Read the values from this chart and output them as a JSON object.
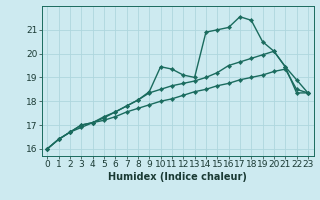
{
  "xlabel": "Humidex (Indice chaleur)",
  "background_color": "#cdeaf0",
  "line_color": "#1a6b5e",
  "xlim": [
    -0.5,
    23.5
  ],
  "ylim": [
    15.7,
    22.0
  ],
  "yticks": [
    16,
    17,
    18,
    19,
    20,
    21
  ],
  "xticks": [
    0,
    1,
    2,
    3,
    4,
    5,
    6,
    7,
    8,
    9,
    10,
    11,
    12,
    13,
    14,
    15,
    16,
    17,
    18,
    19,
    20,
    21,
    22,
    23
  ],
  "line1_x": [
    0,
    1,
    2,
    3,
    4,
    5,
    6,
    7,
    8,
    9,
    10,
    11,
    12,
    13,
    14,
    15,
    16,
    17,
    18,
    19,
    20,
    21,
    22,
    23
  ],
  "line1_y": [
    16.0,
    16.4,
    16.7,
    16.9,
    17.1,
    17.35,
    17.55,
    17.8,
    18.05,
    18.4,
    19.45,
    19.35,
    19.1,
    19.0,
    20.9,
    21.0,
    21.1,
    21.55,
    21.4,
    20.5,
    20.1,
    19.45,
    18.35,
    18.35
  ],
  "line2_x": [
    0,
    1,
    2,
    3,
    4,
    5,
    6,
    7,
    8,
    9,
    10,
    11,
    12,
    13,
    14,
    15,
    16,
    17,
    18,
    19,
    20,
    21,
    22,
    23
  ],
  "line2_y": [
    16.0,
    16.4,
    16.7,
    17.0,
    17.1,
    17.3,
    17.55,
    17.8,
    18.05,
    18.35,
    18.5,
    18.65,
    18.75,
    18.85,
    19.0,
    19.2,
    19.5,
    19.65,
    19.8,
    19.95,
    20.1,
    19.45,
    18.9,
    18.35
  ],
  "line3_x": [
    0,
    1,
    2,
    3,
    4,
    5,
    6,
    7,
    8,
    9,
    10,
    11,
    12,
    13,
    14,
    15,
    16,
    17,
    18,
    19,
    20,
    21,
    22,
    23
  ],
  "line3_y": [
    16.0,
    16.4,
    16.7,
    17.0,
    17.1,
    17.2,
    17.35,
    17.55,
    17.7,
    17.85,
    18.0,
    18.1,
    18.25,
    18.4,
    18.5,
    18.65,
    18.75,
    18.9,
    19.0,
    19.1,
    19.25,
    19.35,
    18.5,
    18.35
  ],
  "grid_color": "#aed6de",
  "markersize": 2.2,
  "linewidth": 1.0,
  "xlabel_fontsize": 7,
  "tick_fontsize": 6.5
}
